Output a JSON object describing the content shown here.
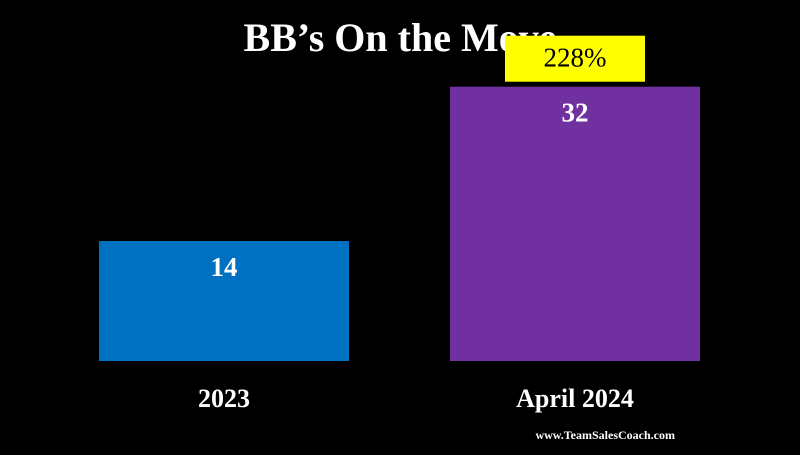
{
  "chart_data": {
    "type": "bar",
    "title": "BB’s On the Move",
    "categories": [
      "2023",
      "April 2024"
    ],
    "values": [
      14,
      32
    ],
    "data_labels": [
      "14",
      "32"
    ],
    "bar_colors": [
      "#0070c0",
      "#7030a0"
    ],
    "ylim": [
      0,
      35
    ],
    "grid": false,
    "legend": "none",
    "annotation": {
      "text": "228%",
      "category": "April 2024",
      "background": "#ffff00",
      "text_color": "#000000"
    }
  },
  "footer": "www.TeamSalesCoach.com",
  "colors": {
    "background": "#000000",
    "text": "#ffffff"
  }
}
